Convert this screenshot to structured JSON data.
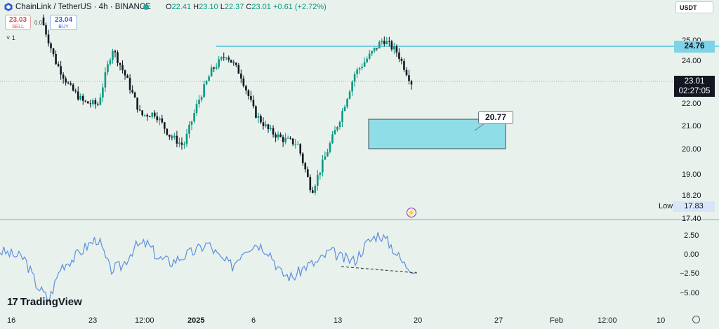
{
  "header": {
    "symbol_title": "ChainLink / TetherUS · 4h · BINANCE",
    "ohlc": [
      {
        "key": "O",
        "value": "22.41"
      },
      {
        "key": "H",
        "value": "23.10"
      },
      {
        "key": "L",
        "value": "22.37"
      },
      {
        "key": "C",
        "value": "23.01"
      }
    ],
    "change": "+0.61 (+2.72%)",
    "currency": "USDT"
  },
  "trade": {
    "sell_price": "23.03",
    "sell_label": "SELL",
    "spread": "0.01",
    "buy_price": "23.04",
    "buy_label": "BUY"
  },
  "indicator_toggle": "˅ 1",
  "price_axis": {
    "ticks": [
      "25.00",
      "24.00",
      "22.00",
      "21.00",
      "20.00",
      "19.00",
      "18.20",
      "17.40"
    ],
    "level_tag": "24.76",
    "last_price": "23.01",
    "countdown": "02:27:05",
    "low_label": "Low",
    "low_value": "17.83"
  },
  "oscillator_axis": {
    "ticks": [
      "2.50",
      "0.00",
      "−2.50",
      "−5.00"
    ]
  },
  "time_axis": {
    "labels": [
      "16",
      "23",
      "12:00",
      "2025",
      "6",
      "13",
      "20",
      "27",
      "Feb",
      "12:00",
      "10"
    ]
  },
  "zone_callout": "20.77",
  "branding": "TradingView",
  "colors": {
    "background": "#e9f1ec",
    "up_candle": "#089981",
    "down_candle": "#131722",
    "level_line": "#4cc3d9",
    "zone_fill": "#8fdde6",
    "oscillator_line": "#5b8fe0"
  },
  "chart_data": [
    {
      "type": "candlestick",
      "title": "ChainLink / TetherUS · 4h · BINANCE",
      "ylim": [
        17.4,
        25.3
      ],
      "x_labels": [
        "16",
        "23",
        "12:00",
        "2025",
        "6",
        "13",
        "20",
        "27",
        "Feb",
        "12:00",
        "10"
      ],
      "close_path": [
        [
          "16",
          26.0
        ],
        [
          "18",
          24.0
        ],
        [
          "19",
          22.8
        ],
        [
          "21",
          22.1
        ],
        [
          "23",
          22.0
        ],
        [
          "25",
          24.6
        ],
        [
          "26",
          23.2
        ],
        [
          "28",
          21.5
        ],
        [
          "30",
          21.6
        ],
        [
          "2025-01-01",
          20.6
        ],
        [
          "2025-01-02",
          20.1
        ],
        [
          "2025-01-03",
          22.1
        ],
        [
          "2025-01-05",
          23.6
        ],
        [
          "2025-01-06",
          24.3
        ],
        [
          "2025-01-07",
          23.4
        ],
        [
          "2025-01-08",
          21.6
        ],
        [
          "2025-01-09",
          20.8
        ],
        [
          "2025-01-11",
          20.4
        ],
        [
          "2025-01-12",
          20.2
        ],
        [
          "2025-01-13",
          18.0
        ],
        [
          "2025-01-14",
          19.7
        ],
        [
          "2025-01-15",
          21.4
        ],
        [
          "2025-01-16",
          23.4
        ],
        [
          "2025-01-17",
          24.2
        ],
        [
          "2025-01-18",
          25.0
        ],
        [
          "2025-01-19",
          24.4
        ],
        [
          "2025-01-19T16:00",
          23.01
        ]
      ],
      "horizontal_level": 24.76,
      "demand_zone": {
        "low": 20.05,
        "high": 21.2,
        "label": "20.77"
      },
      "last_price": 23.01,
      "low": 17.83
    },
    {
      "type": "line",
      "title": "",
      "ylim": [
        -5.5,
        3.2
      ],
      "y_ticks": [
        2.5,
        0.0,
        -2.5,
        -5.0
      ],
      "series": [
        {
          "values": [
            0.5,
            0.0,
            -0.5,
            -4.0,
            -6.0,
            -1.5,
            -0.5,
            1.0,
            2.2,
            -2.0,
            -1.5,
            1.0,
            1.5,
            -0.5,
            -1.0,
            -0.2,
            0.5,
            1.5,
            -0.5,
            -1.5,
            0.8,
            1.5,
            0.5,
            -2.5,
            -3.0,
            -1.5,
            -1.0,
            0.5,
            -0.5,
            -0.8,
            1.5,
            2.8,
            1.2,
            -1.2,
            -2.0
          ]
        }
      ],
      "divergence_line": {
        "from": -0.8,
        "to": -2.3
      }
    }
  ]
}
